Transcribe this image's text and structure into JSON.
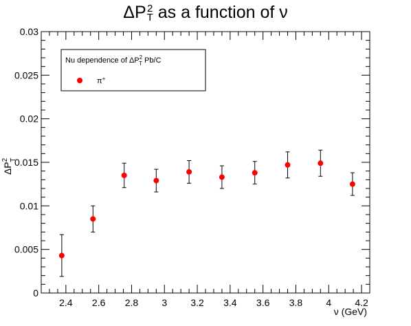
{
  "chart_data": {
    "type": "scatter",
    "title": "ΔP_T^2 as a function of ν",
    "xlabel": "ν (GeV)",
    "ylabel": "ΔP_T^2",
    "xlim": [
      2.25,
      4.25
    ],
    "ylim": [
      0,
      0.03
    ],
    "x_ticks": [
      "2.4",
      "2.6",
      "2.8",
      "3",
      "3.2",
      "3.4",
      "3.6",
      "3.8",
      "4",
      "4.2"
    ],
    "y_ticks": [
      "0",
      "0.005",
      "0.01",
      "0.015",
      "0.02",
      "0.025",
      "0.03"
    ],
    "legend": {
      "header": "Nu dependence of ΔP_T^2 Pb/C",
      "position": "top-left"
    },
    "series": [
      {
        "name": "π+",
        "color": "#ff0000",
        "marker": "circle",
        "points": [
          {
            "x": 2.375,
            "y": 0.0043,
            "yerr": 0.0024
          },
          {
            "x": 2.565,
            "y": 0.0085,
            "yerr": 0.0015
          },
          {
            "x": 2.755,
            "y": 0.0135,
            "yerr": 0.0014
          },
          {
            "x": 2.95,
            "y": 0.0129,
            "yerr": 0.0013
          },
          {
            "x": 3.15,
            "y": 0.0139,
            "yerr": 0.0013
          },
          {
            "x": 3.35,
            "y": 0.0133,
            "yerr": 0.0013
          },
          {
            "x": 3.55,
            "y": 0.0138,
            "yerr": 0.0013
          },
          {
            "x": 3.75,
            "y": 0.0147,
            "yerr": 0.0015
          },
          {
            "x": 3.95,
            "y": 0.0149,
            "yerr": 0.0015
          },
          {
            "x": 4.145,
            "y": 0.0125,
            "yerr": 0.0013
          }
        ]
      }
    ]
  }
}
